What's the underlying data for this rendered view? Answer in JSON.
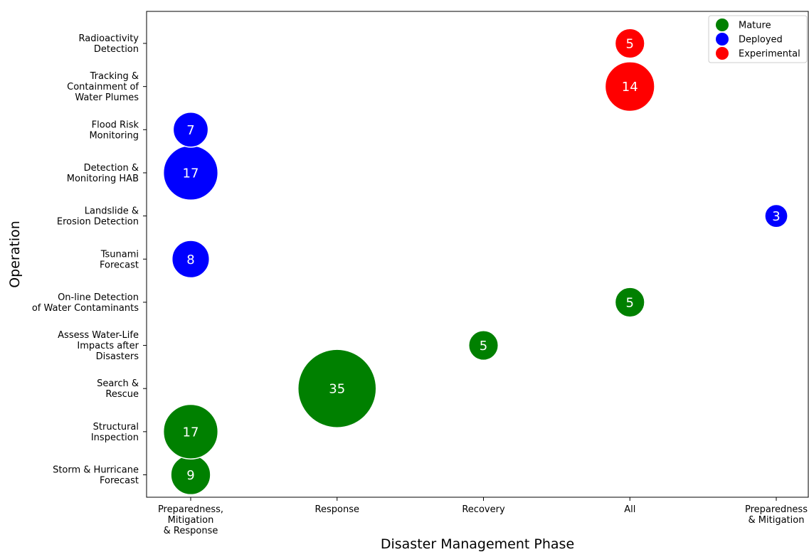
{
  "chart_data": {
    "type": "scatter",
    "xlabel": "Disaster Management Phase",
    "ylabel": "Operation",
    "x_categories": [
      [
        "Preparedness,",
        "Mitigation",
        "& Response"
      ],
      [
        "Response"
      ],
      [
        "Recovery"
      ],
      [
        "All"
      ],
      [
        "Preparedness",
        "& Mitigation"
      ]
    ],
    "y_categories": [
      [
        "Storm & Hurricane",
        "Forecast"
      ],
      [
        "Structural",
        "Inspection"
      ],
      [
        "Search &",
        "Rescue"
      ],
      [
        "Assess Water-Life",
        "Impacts after",
        "Disasters"
      ],
      [
        "On-line Detection",
        "of Water Contaminants"
      ],
      [
        "Tsunami",
        "Forecast"
      ],
      [
        "Landslide &",
        "Erosion Detection"
      ],
      [
        "Detection &",
        "Monitoring HAB"
      ],
      [
        "Flood Risk",
        "Monitoring"
      ],
      [
        "Tracking &",
        "Containment of",
        "Water Plumes"
      ],
      [
        "Radioactivity",
        "Detection"
      ]
    ],
    "legend": {
      "position": "top-right"
    },
    "series": [
      {
        "name": "Mature",
        "color": "#008000",
        "points": [
          {
            "x": 0,
            "y": 0,
            "value": 9
          },
          {
            "x": 0,
            "y": 1,
            "value": 17
          },
          {
            "x": 1,
            "y": 2,
            "value": 35
          },
          {
            "x": 2,
            "y": 3,
            "value": 5
          },
          {
            "x": 3,
            "y": 4,
            "value": 5
          }
        ]
      },
      {
        "name": "Deployed",
        "color": "#0000ff",
        "points": [
          {
            "x": 0,
            "y": 5,
            "value": 8
          },
          {
            "x": 4,
            "y": 6,
            "value": 3
          },
          {
            "x": 0,
            "y": 7,
            "value": 17
          },
          {
            "x": 0,
            "y": 8,
            "value": 7
          }
        ]
      },
      {
        "name": "Experimental",
        "color": "#ff0000",
        "points": [
          {
            "x": 3,
            "y": 9,
            "value": 14
          },
          {
            "x": 3,
            "y": 10,
            "value": 5
          }
        ]
      }
    ]
  }
}
